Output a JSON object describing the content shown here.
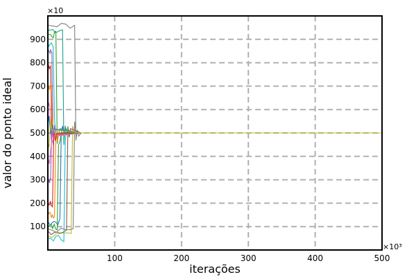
{
  "chart_data": {
    "type": "line",
    "title": "",
    "xlabel": "iterações",
    "ylabel": "valor do ponto ideal",
    "x_multiplier": "×10³",
    "y_multiplier": "×10⁳",
    "xlim": [
      0,
      500
    ],
    "ylim": [
      0,
      1000
    ],
    "x_ticks": [
      "100",
      "200",
      "300",
      "400",
      "500"
    ],
    "y_ticks": [
      "100",
      "200",
      "300",
      "400",
      "500",
      "600",
      "700",
      "800",
      "900"
    ],
    "grid": true,
    "converged_value": 500,
    "series": [
      {
        "color": "#1f9e89",
        "start": 940,
        "drop_x": 22,
        "end": 500
      },
      {
        "color": "#7f7f7f",
        "start": 960,
        "drop_x": 40,
        "end": 500
      },
      {
        "color": "#2ca02c",
        "start": 920,
        "drop_x": 12,
        "end": 500
      },
      {
        "color": "#17becf",
        "start": 880,
        "drop_x": 8,
        "end": 500
      },
      {
        "color": "#9467bd",
        "start": 850,
        "drop_x": 6,
        "end": 500
      },
      {
        "color": "#d62728",
        "start": 780,
        "drop_x": 4,
        "end": 500
      },
      {
        "color": "#ff7f0e",
        "start": 700,
        "drop_x": 5,
        "end": 500
      },
      {
        "color": "#e377c2",
        "start": 620,
        "drop_x": 3,
        "end": 500
      },
      {
        "color": "#bcbd22",
        "start": 60,
        "drop_x": 35,
        "end": 500
      },
      {
        "color": "#8c564b",
        "start": 80,
        "drop_x": 28,
        "end": 500
      },
      {
        "color": "#1f77b4",
        "start": 120,
        "drop_x": 18,
        "end": 500
      },
      {
        "color": "#17becf",
        "start": 50,
        "drop_x": 24,
        "end": 500
      },
      {
        "color": "#2ca02c",
        "start": 100,
        "drop_x": 14,
        "end": 500
      },
      {
        "color": "#ff7f0e",
        "start": 150,
        "drop_x": 10,
        "end": 500
      },
      {
        "color": "#d62728",
        "start": 200,
        "drop_x": 7,
        "end": 500
      },
      {
        "color": "#9467bd",
        "start": 300,
        "drop_x": 4,
        "end": 500
      },
      {
        "color": "#e377c2",
        "start": 380,
        "drop_x": 3,
        "end": 500
      },
      {
        "color": "#7f7f7f",
        "start": 90,
        "drop_x": 38,
        "end": 500
      },
      {
        "color": "#1f77b4",
        "start": 560,
        "drop_x": 2,
        "end": 500
      },
      {
        "color": "#bcbd22",
        "start": 440,
        "drop_x": 2,
        "end": 500
      }
    ]
  }
}
